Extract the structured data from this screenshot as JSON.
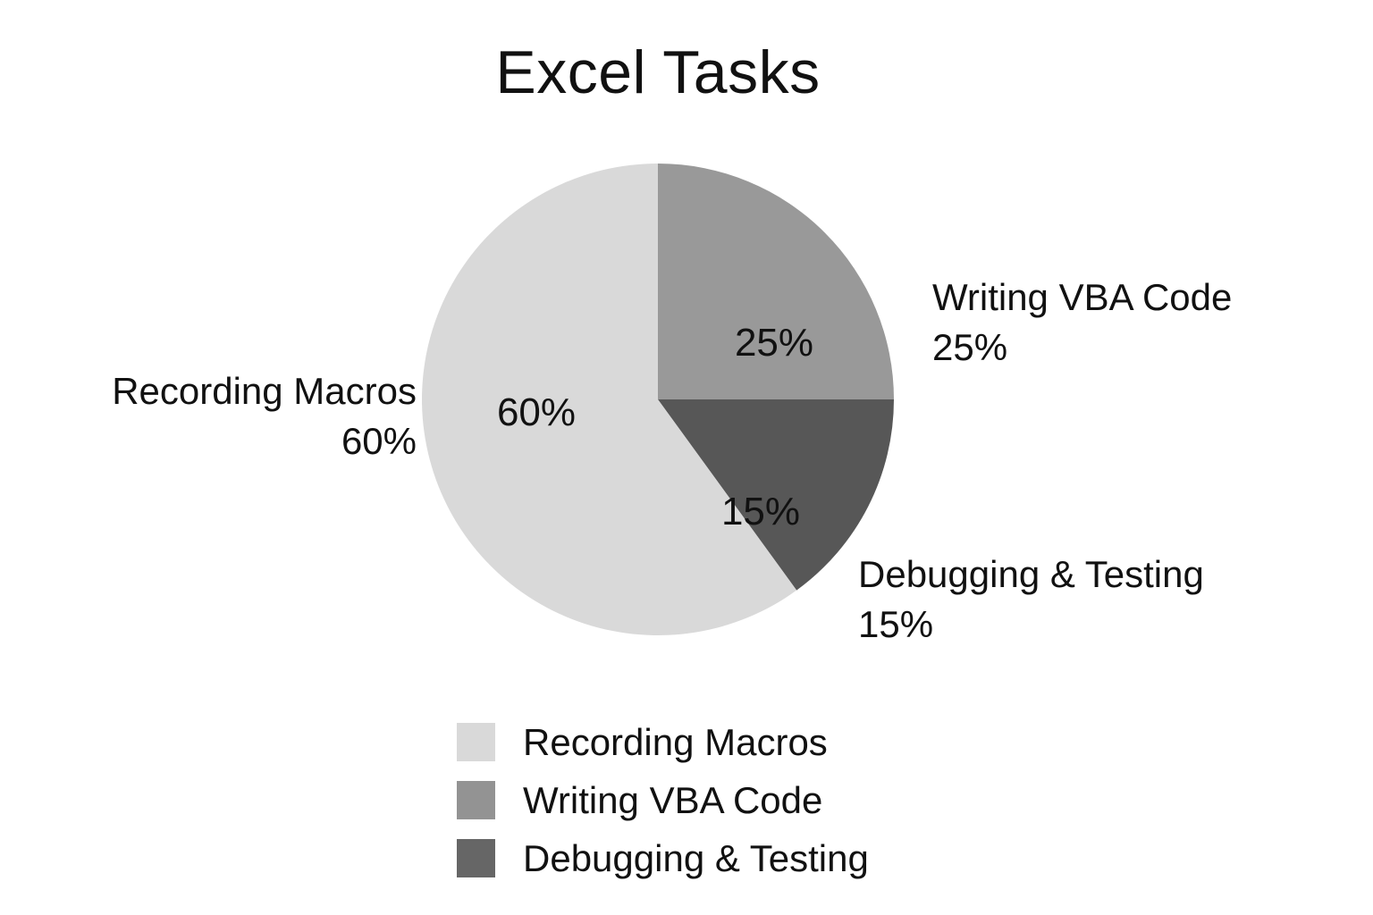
{
  "chart_data": {
    "type": "pie",
    "title": "Excel Tasks",
    "slices": [
      {
        "label": "Recording Macros",
        "value": 60,
        "value_label": "60%",
        "color": "#d9d9d9",
        "legend_color": "#d9d9d9"
      },
      {
        "label": "Writing VBA Code",
        "value": 25,
        "value_label": "25%",
        "color": "#999999",
        "legend_color": "#939393"
      },
      {
        "label": "Debugging & Testing",
        "value": 15,
        "value_label": "15%",
        "color": "#575757",
        "legend_color": "#666666"
      }
    ],
    "legend_placement": "bottom-center",
    "start_angle": "12 o'clock",
    "direction": "clockwise"
  }
}
